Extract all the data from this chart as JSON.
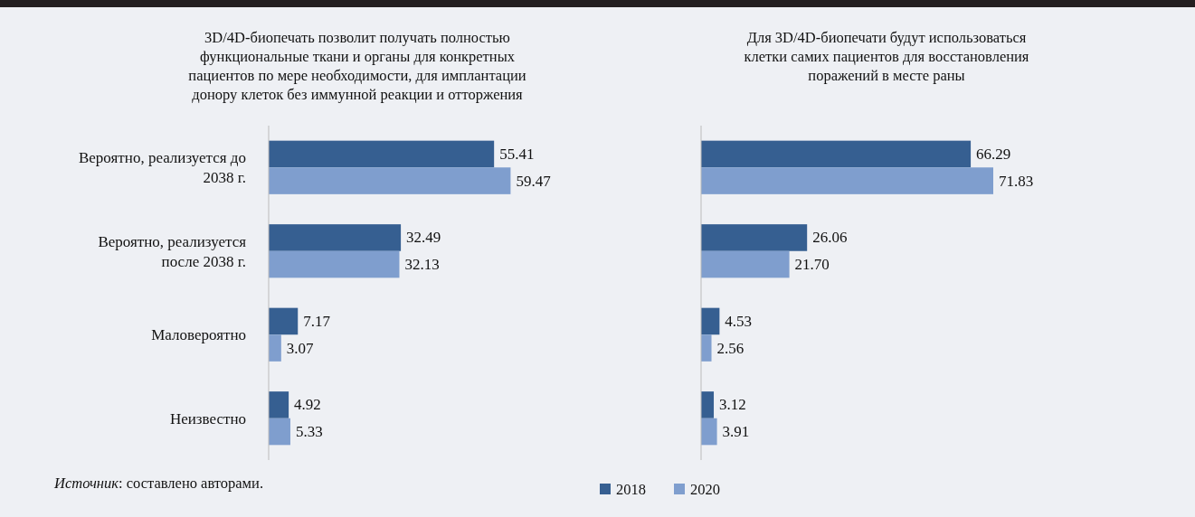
{
  "chart_data": [
    {
      "type": "bar",
      "orientation": "horizontal",
      "title": "3D/4D-биопечать позволит получать полностью функциональные ткани и органы для конкретных пациентов по мере необходимости, для имплантации донору клеток без иммунной реакции и отторжения",
      "categories": [
        "Вероятно, реализуется до 2038 г.",
        "Вероятно, реализуется после 2038 г.",
        "Маловероятно",
        "Неизвестно"
      ],
      "series": [
        {
          "name": "2018",
          "color": "#365f91",
          "values": [
            55.41,
            32.49,
            7.17,
            4.92
          ],
          "value_labels": [
            "55.41",
            "32.49",
            "7.17",
            "4.92"
          ]
        },
        {
          "name": "2020",
          "color": "#7f9ece",
          "values": [
            59.47,
            32.13,
            3.07,
            5.33
          ],
          "value_labels": [
            "59.47",
            "32.13",
            "3.07",
            "5.33"
          ]
        }
      ],
      "legend": "bottom",
      "annotations": [
        "Источник: составлено авторами."
      ]
    },
    {
      "type": "bar",
      "orientation": "horizontal",
      "title": "Для 3D/4D-биопечати будут использоваться клетки самих пациентов для восстановления поражений в месте раны",
      "categories": [
        null,
        null,
        null,
        null
      ],
      "series": [
        {
          "color": "#365f91",
          "values": [
            66.29,
            26.06,
            4.53,
            3.12
          ],
          "value_labels": [
            "66.29",
            "26.06",
            "4.53",
            "3.12"
          ]
        },
        {
          "color": "#7f9ece",
          "values": [
            71.83,
            21.7,
            2.56,
            3.91
          ],
          "value_labels": [
            "71.83",
            "21.70",
            "2.56",
            "3.91"
          ]
        }
      ]
    }
  ]
}
